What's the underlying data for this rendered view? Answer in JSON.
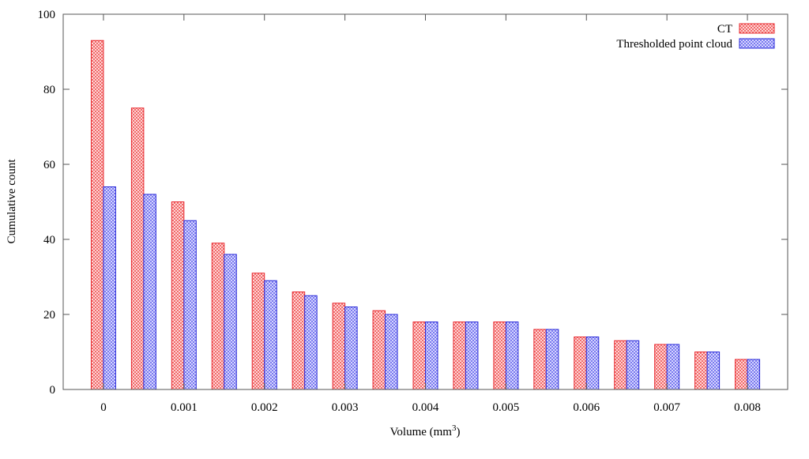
{
  "chart_data": {
    "type": "bar",
    "title": "",
    "xlabel": "Volume (mm",
    "xlabel_sup": "3",
    "xlabel_close": ")",
    "ylabel": "Cumulative count",
    "xlim": [
      -0.0005,
      0.0085
    ],
    "ylim": [
      0,
      100
    ],
    "grid": false,
    "legend_position": "top-right",
    "x": [
      0,
      0.0005,
      0.001,
      0.0015,
      0.002,
      0.0025,
      0.003,
      0.0035,
      0.004,
      0.0045,
      0.005,
      0.0055,
      0.006,
      0.0065,
      0.007,
      0.0075,
      0.008
    ],
    "xticks": [
      "0",
      "0.001",
      "0.002",
      "0.003",
      "0.004",
      "0.005",
      "0.006",
      "0.007",
      "0.008"
    ],
    "yticks": [
      "0",
      "20",
      "40",
      "60",
      "80",
      "100"
    ],
    "series": [
      {
        "name": "CT",
        "color": "#e8282e",
        "values": [
          93,
          75,
          50,
          39,
          31,
          26,
          23,
          21,
          18,
          18,
          18,
          16,
          14,
          13,
          12,
          10,
          8
        ]
      },
      {
        "name": "Thresholded point cloud",
        "color": "#2a2ad8",
        "values": [
          54,
          52,
          45,
          36,
          29,
          25,
          22,
          20,
          18,
          18,
          18,
          16,
          14,
          13,
          12,
          10,
          8
        ]
      }
    ]
  }
}
